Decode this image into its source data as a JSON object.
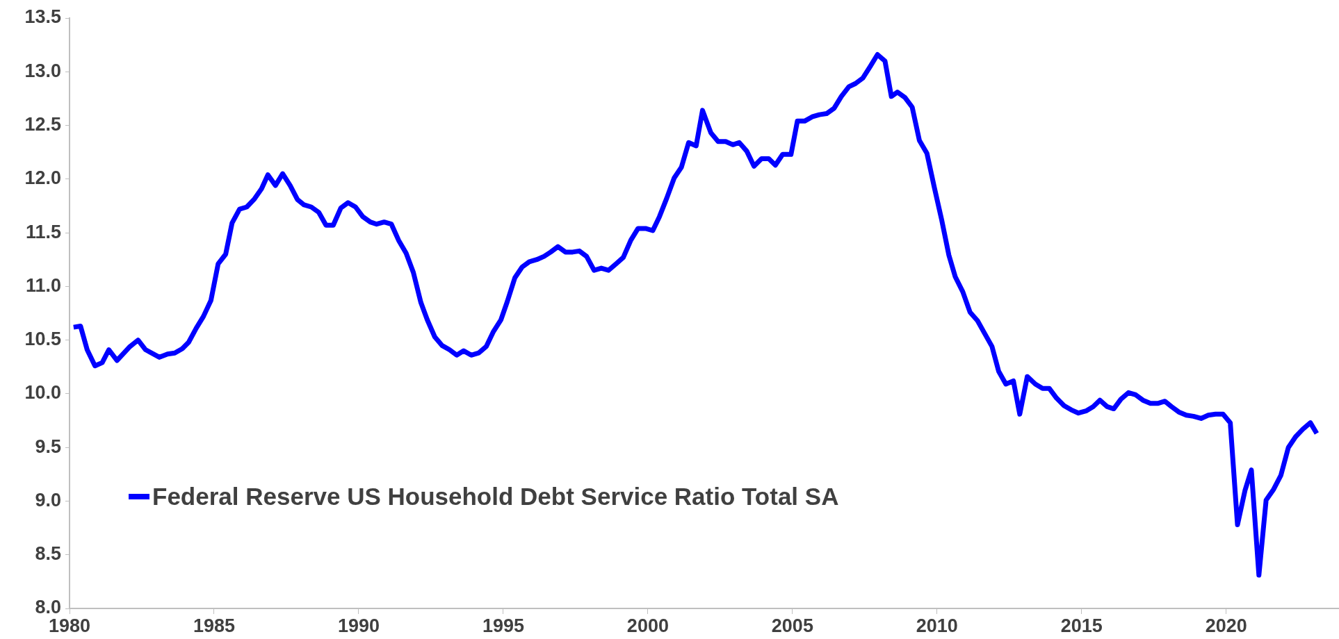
{
  "chart_data": {
    "type": "line",
    "x": [
      1980.14,
      1980.38,
      1980.61,
      1980.88,
      1981.13,
      1981.36,
      1981.64,
      1982.09,
      1982.37,
      1982.63,
      1983.11,
      1983.39,
      1983.64,
      1983.9,
      1984.12,
      1984.38,
      1984.63,
      1984.89,
      1985.14,
      1985.4,
      1985.62,
      1985.88,
      1986.13,
      1986.38,
      1986.64,
      1986.86,
      1987.12,
      1987.37,
      1987.63,
      1987.88,
      1988.11,
      1988.36,
      1988.62,
      1988.87,
      1989.12,
      1989.38,
      1989.63,
      1989.89,
      1990.14,
      1990.4,
      1990.62,
      1990.88,
      1991.13,
      1991.38,
      1991.64,
      1991.89,
      1992.15,
      1992.37,
      1992.63,
      1992.88,
      1993.14,
      1993.39,
      1993.63,
      1993.89,
      1994.15,
      1994.41,
      1994.66,
      1994.92,
      1995.14,
      1995.4,
      1995.65,
      1995.9,
      1996.16,
      1996.41,
      1996.64,
      1996.89,
      1997.15,
      1997.4,
      1997.63,
      1997.88,
      1998.14,
      1998.39,
      1998.64,
      1998.9,
      1999.15,
      1999.41,
      1999.66,
      1999.92,
      2000.17,
      2000.4,
      2000.65,
      2000.91,
      2001.16,
      2001.41,
      2001.67,
      2001.89,
      2002.18,
      2002.43,
      2002.69,
      2002.94,
      2003.16,
      2003.42,
      2003.67,
      2003.93,
      2004.18,
      2004.41,
      2004.66,
      2004.95,
      2005.17,
      2005.42,
      2005.68,
      2005.93,
      2006.18,
      2006.44,
      2006.69,
      2006.95,
      2007.18,
      2007.43,
      2007.69,
      2007.94,
      2008.2,
      2008.42,
      2008.63,
      2008.89,
      2009.14,
      2009.39,
      2009.65,
      2009.9,
      2010.16,
      2010.41,
      2010.63,
      2010.89,
      2011.14,
      2011.4,
      2011.65,
      2011.9,
      2012.13,
      2012.38,
      2012.64,
      2012.86,
      2013.12,
      2013.4,
      2013.65,
      2013.88,
      2014.13,
      2014.39,
      2014.64,
      2014.89,
      2015.15,
      2015.4,
      2015.63,
      2015.88,
      2016.11,
      2016.36,
      2016.62,
      2016.87,
      2017.12,
      2017.38,
      2017.63,
      2017.88,
      2018.11,
      2018.36,
      2018.62,
      2018.87,
      2019.13,
      2019.38,
      2019.63,
      2019.89,
      2020.14,
      2020.39,
      2020.65,
      2020.87,
      2021.13,
      2021.38,
      2021.64,
      2021.89,
      2022.15,
      2022.4,
      2022.65,
      2022.91,
      2023.13
    ],
    "series": [
      {
        "name": "Federal Reserve US Household Debt Service Ratio Total SA",
        "color": "#0000ff",
        "values": [
          10.62,
          10.63,
          10.41,
          10.26,
          10.29,
          10.41,
          10.31,
          10.44,
          10.5,
          10.41,
          10.34,
          10.37,
          10.38,
          10.42,
          10.48,
          10.61,
          10.72,
          10.87,
          11.21,
          11.3,
          11.59,
          11.72,
          11.74,
          11.81,
          11.91,
          12.04,
          11.94,
          12.05,
          11.94,
          11.81,
          11.76,
          11.74,
          11.69,
          11.57,
          11.57,
          11.73,
          11.78,
          11.74,
          11.65,
          11.6,
          11.58,
          11.6,
          11.58,
          11.43,
          11.31,
          11.13,
          10.85,
          10.69,
          10.53,
          10.45,
          10.41,
          10.36,
          10.4,
          10.36,
          10.38,
          10.44,
          10.58,
          10.69,
          10.86,
          11.08,
          11.18,
          11.23,
          11.25,
          11.28,
          11.32,
          11.37,
          11.32,
          11.32,
          11.33,
          11.28,
          11.15,
          11.17,
          11.15,
          11.21,
          11.27,
          11.43,
          11.54,
          11.54,
          11.52,
          11.65,
          11.82,
          12.01,
          12.11,
          12.34,
          12.31,
          12.64,
          12.43,
          12.35,
          12.35,
          12.32,
          12.34,
          12.26,
          12.12,
          12.19,
          12.19,
          12.13,
          12.23,
          12.23,
          12.54,
          12.54,
          12.58,
          12.6,
          12.61,
          12.66,
          12.77,
          12.86,
          12.89,
          12.94,
          13.05,
          13.16,
          13.1,
          12.77,
          12.81,
          12.76,
          12.67,
          12.36,
          12.24,
          11.93,
          11.62,
          11.29,
          11.09,
          10.95,
          10.76,
          10.68,
          10.56,
          10.44,
          10.21,
          10.09,
          10.12,
          9.81,
          10.16,
          10.09,
          10.05,
          10.05,
          9.96,
          9.89,
          9.85,
          9.82,
          9.84,
          9.88,
          9.94,
          9.88,
          9.86,
          9.95,
          10.01,
          9.99,
          9.94,
          9.91,
          9.91,
          9.93,
          9.88,
          9.83,
          9.8,
          9.79,
          9.77,
          9.8,
          9.81,
          9.81,
          9.73,
          8.78,
          9.1,
          9.29,
          8.31,
          9.01,
          9.11,
          9.24,
          9.5,
          9.6,
          9.67,
          9.73,
          9.63
        ]
      }
    ],
    "xlim": [
      1980,
      2023.9
    ],
    "xticks": [
      1980,
      1985,
      1990,
      1995,
      2000,
      2005,
      2010,
      2015,
      2020
    ],
    "ylim": [
      8.0,
      13.5
    ],
    "yticks": [
      {
        "value": 8.0,
        "label": "8.0"
      },
      {
        "value": 8.5,
        "label": "8.5"
      },
      {
        "value": 9.0,
        "label": "9.0"
      },
      {
        "value": 9.5,
        "label": "9.5"
      },
      {
        "value": 10.0,
        "label": "10.0"
      },
      {
        "value": 10.5,
        "label": "10.5"
      },
      {
        "value": 11.0,
        "label": "11.0"
      },
      {
        "value": 11.5,
        "label": "11.5"
      },
      {
        "value": 12.0,
        "label": "12.0"
      },
      {
        "value": 12.5,
        "label": "12.5"
      },
      {
        "value": 13.0,
        "label": "13.0"
      },
      {
        "value": 13.5,
        "label": "13.5"
      }
    ],
    "grid": false,
    "legend": "bottom left",
    "marker": "none",
    "line_style": "solid"
  }
}
